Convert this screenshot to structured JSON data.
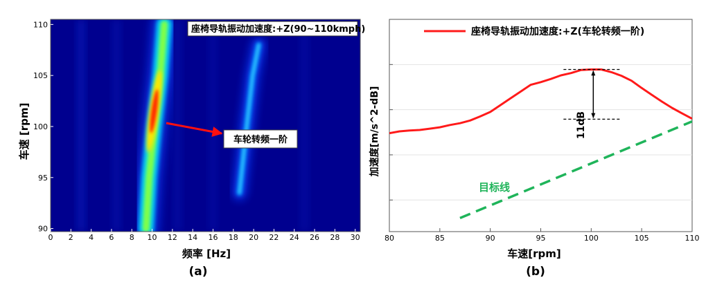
{
  "panel_a": {
    "caption": "(a)",
    "legend_text": "座椅导轨振动加速度:+Z(90~110kmph)",
    "annotation_text": "车轮转频一阶",
    "xlabel": "频率 [Hz]",
    "ylabel": "车速 [rpm]"
  },
  "panel_b": {
    "caption": "(b)",
    "legend_text": "座椅导轨振动加速度:+Z(车轮转频一阶)",
    "dimension_label": "11dB",
    "target_label": "目标线",
    "xlabel": "车速[rpm]",
    "ylabel": "加速度[m/s^2-dB]"
  },
  "colors": {
    "colormap_low": "#00008f",
    "ridge_peak": "#ff2a00",
    "response_line": "#ff1a1a",
    "target_line": "#1fb45a",
    "annotation_arrow": "#ff1010"
  },
  "chart_data": [
    {
      "type": "heatmap",
      "legend": "座椅导轨振动加速度:+Z(90~110kmph)",
      "xlabel": "频率 [Hz]",
      "ylabel": "车速 [rpm]",
      "xlim": [
        0,
        30.5
      ],
      "ylim": [
        89.7,
        110.5
      ],
      "x_ticks": [
        0,
        2,
        4,
        6,
        8,
        10,
        12,
        14,
        16,
        18,
        20,
        22,
        24,
        26,
        28,
        30
      ],
      "y_ticks": [
        90,
        95,
        100,
        105,
        110
      ],
      "colormap": "jet",
      "ridges": [
        {
          "name": "车轮转频一阶",
          "points": [
            [
              9.4,
              90
            ],
            [
              9.7,
              95
            ],
            [
              10.2,
              100
            ],
            [
              10.8,
              105
            ],
            [
              11.2,
              110
            ]
          ],
          "peak_at": [
            10.2,
            101.5
          ]
        },
        {
          "name": "",
          "points": [
            [
              18.6,
              93.5
            ],
            [
              19.2,
              99
            ],
            [
              19.9,
              105
            ],
            [
              20.5,
              108
            ]
          ]
        }
      ],
      "annotation": {
        "text": "车轮转频一阶",
        "arrow_to": [
          10.5,
          100.2
        ]
      }
    },
    {
      "type": "line",
      "legend_position": "top",
      "xlabel": "车速[rpm]",
      "ylabel": "加速度[m/s^2-dB]",
      "xlim": [
        80,
        110
      ],
      "x_ticks": [
        80,
        85,
        90,
        95,
        100,
        105,
        110
      ],
      "y_ticks_labeled": false,
      "series": [
        {
          "name": "座椅导轨振动加速度:+Z(车轮转频一阶)",
          "x": [
            80,
            81,
            82,
            83,
            84,
            85,
            86,
            87,
            88,
            89,
            90,
            91,
            92,
            93,
            94,
            95,
            96,
            97,
            98,
            99,
            100,
            101,
            102,
            103,
            104,
            105,
            106,
            107,
            108,
            109,
            110
          ],
          "y": [
            -5.2,
            -4.8,
            -4.6,
            -4.5,
            -4.2,
            -3.9,
            -3.4,
            -3.0,
            -2.4,
            -1.5,
            -0.5,
            1.0,
            2.5,
            4.0,
            5.5,
            6.1,
            6.8,
            7.6,
            8.1,
            8.8,
            8.9,
            8.9,
            8.3,
            7.5,
            6.4,
            4.8,
            3.3,
            1.8,
            0.4,
            -0.8,
            -2.0
          ]
        }
      ],
      "target_line": {
        "label": "目标线",
        "x": [
          87,
          110
        ],
        "y": [
          -24,
          -2.6
        ],
        "style": "dashed"
      },
      "dimension": {
        "text": "11dB",
        "x": 100,
        "y_top": 8.9,
        "y_bottom": -2.1
      }
    }
  ]
}
